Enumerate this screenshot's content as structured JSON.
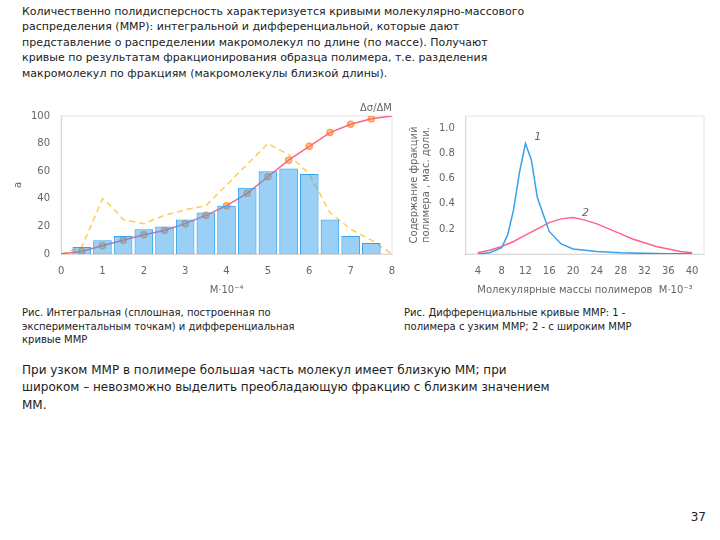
{
  "title": "Количественно полидисперсность характеризуется кривыми молекулярно-массового\nраспределения (ММР): интегральной и дифференциальной, которые дают\nпредставление о распределении макромолекул по длине (по массе). Получают\nкривые по результатам фракционирования образца полимера, т.е. разделения\nмакромолекул по фракциям (макромолекулы близкой длины).",
  "text": "При узком ММР в полимере большая часть молекул имеет близкую ММ; при\nшироком – невозможно выделить преобладающую фракцию с близким значением\nММ.",
  "page_number": "37",
  "chart_data": [
    {
      "type": "bar",
      "caption": "Рис. Интегральная (сплошная, построенная по\nэкспериментальным точкам) и дифференциальная\nкривые ММР",
      "xlabel": "M·10⁻⁴",
      "ylabel": "a",
      "y2label": "Δσ/ΔM",
      "xlim": [
        0,
        8
      ],
      "ylim": [
        0,
        100
      ],
      "xticks": [
        0,
        1,
        2,
        3,
        4,
        5,
        6,
        7,
        8
      ],
      "yticks": [
        0,
        20,
        40,
        60,
        80,
        100
      ],
      "grid": false,
      "series": [
        {
          "type": "bar",
          "x": [
            0.5,
            1.0,
            1.5,
            2.0,
            2.5,
            3.0,
            3.5,
            4.0,
            4.5,
            5.0,
            5.5,
            6.0,
            6.5,
            7.0,
            7.5
          ],
          "values": [
            5,
            10,
            13,
            18,
            20,
            25,
            30,
            35,
            48,
            60,
            62,
            58,
            25,
            13,
            8
          ]
        },
        {
          "type": "line",
          "line_style": "solid",
          "x": [
            0,
            0.5,
            1.0,
            1.5,
            2.0,
            2.5,
            3.0,
            3.5,
            4.0,
            4.5,
            5.0,
            5.5,
            6.0,
            6.5,
            7.0,
            7.5,
            8.0
          ],
          "values": [
            0,
            2,
            6,
            10,
            14,
            17,
            22,
            28,
            35,
            44,
            56,
            68,
            78,
            88,
            94,
            98,
            100
          ]
        },
        {
          "type": "scatter",
          "marker": "circle",
          "x": [
            0.5,
            1.0,
            1.5,
            2.0,
            2.5,
            3.0,
            3.5,
            4.0,
            4.5,
            5.0,
            5.5,
            6.0,
            6.5,
            7.0,
            7.5
          ],
          "values": [
            2,
            6,
            10,
            14,
            17,
            22,
            28,
            35,
            44,
            56,
            68,
            78,
            88,
            94,
            98
          ]
        },
        {
          "type": "line",
          "line_style": "dashed",
          "x": [
            0,
            0.5,
            1.0,
            1.2,
            1.5,
            2.0,
            2.5,
            3.0,
            3.5,
            4.0,
            4.5,
            5.0,
            5.5,
            6.0,
            6.5,
            7.0,
            7.5,
            8.0
          ],
          "values": [
            0,
            5,
            40,
            35,
            25,
            22,
            28,
            32,
            35,
            50,
            65,
            80,
            72,
            58,
            30,
            18,
            10,
            0
          ]
        }
      ]
    },
    {
      "type": "line",
      "caption": "Рис. Дифференциальные кривые ММР: 1 -\nполимера с узким ММР; 2 - с широким ММР",
      "xlabel": "Молекулярные массы полимеров  M·10⁻³",
      "ylabel": "Содержание фракций\nполимера , мас. доли.",
      "xlim": [
        2,
        42
      ],
      "ylim": [
        0,
        1.1
      ],
      "xticks": [
        4,
        8,
        12,
        16,
        20,
        24,
        28,
        32,
        36,
        40
      ],
      "yticks": [
        0.2,
        0.4,
        0.6,
        0.8,
        {
          "value": 1.0,
          "label": "1.0"
        }
      ],
      "grid": false,
      "series": [
        {
          "line_style": "solid",
          "x": [
            4,
            6,
            8,
            9,
            10,
            11,
            12,
            13,
            14,
            16,
            18,
            20,
            24,
            28,
            32,
            36,
            40
          ],
          "values": [
            0,
            0.01,
            0.05,
            0.15,
            0.35,
            0.65,
            0.88,
            0.75,
            0.45,
            0.18,
            0.08,
            0.04,
            0.02,
            0.01,
            0.005,
            0.002,
            0.001
          ]
        },
        {
          "line_style": "solid",
          "x": [
            4,
            6,
            8,
            10,
            12,
            14,
            16,
            18,
            20,
            22,
            24,
            26,
            28,
            30,
            32,
            34,
            36,
            38,
            40
          ],
          "values": [
            0.01,
            0.03,
            0.06,
            0.1,
            0.15,
            0.2,
            0.25,
            0.28,
            0.29,
            0.27,
            0.24,
            0.2,
            0.16,
            0.12,
            0.09,
            0.06,
            0.04,
            0.02,
            0.01
          ]
        }
      ],
      "annotations": [
        {
          "text": "1",
          "x": 13.5,
          "y": 0.91
        },
        {
          "text": "2",
          "x": 21.5,
          "y": 0.3
        }
      ]
    }
  ]
}
